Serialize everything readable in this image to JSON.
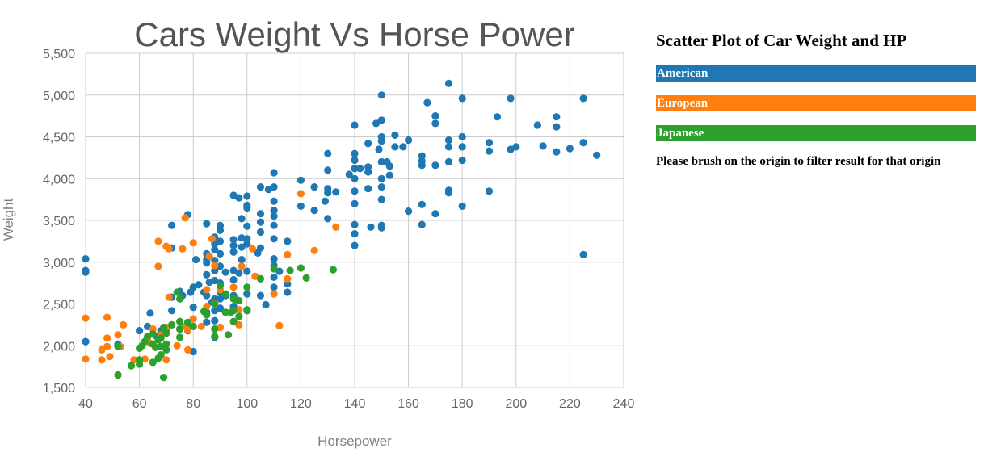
{
  "panel": {
    "title": "Scatter Plot of Car Weight and HP",
    "legend": [
      {
        "label": "American",
        "color": "#1f77b4"
      },
      {
        "label": "European",
        "color": "#ff7f0e"
      },
      {
        "label": "Japanese",
        "color": "#2ca02c"
      }
    ],
    "note": "Please brush on the origin to filter result for that origin"
  },
  "chart_data": {
    "type": "scatter",
    "title": "Cars Weight Vs Horse Power",
    "xlabel": "Horsepower",
    "ylabel": "Weight",
    "xlim": [
      40,
      240
    ],
    "ylim": [
      1500,
      5500
    ],
    "xticks": [
      40,
      60,
      80,
      100,
      120,
      140,
      160,
      180,
      200,
      220,
      240
    ],
    "yticks": [
      1500,
      2000,
      2500,
      3000,
      3500,
      4000,
      4500,
      5000,
      5500
    ],
    "ytick_labels": [
      "1,500",
      "2,000",
      "2,500",
      "3,000",
      "3,500",
      "4,000",
      "4,500",
      "5,000",
      "5,500"
    ],
    "grid": true,
    "series": [
      {
        "name": "American",
        "color": "#1f77b4",
        "points": [
          [
            40,
            3040
          ],
          [
            40,
            2900
          ],
          [
            40,
            2880
          ],
          [
            40,
            2050
          ],
          [
            52,
            2020
          ],
          [
            60,
            2180
          ],
          [
            63,
            2230
          ],
          [
            64,
            2390
          ],
          [
            66,
            2120
          ],
          [
            68,
            2180
          ],
          [
            70,
            2200
          ],
          [
            72,
            2420
          ],
          [
            72,
            2580
          ],
          [
            72,
            3440
          ],
          [
            72,
            3170
          ],
          [
            75,
            2650
          ],
          [
            76,
            2600
          ],
          [
            78,
            3570
          ],
          [
            78,
            2250
          ],
          [
            78,
            2180
          ],
          [
            79,
            2640
          ],
          [
            80,
            1930
          ],
          [
            80,
            2460
          ],
          [
            80,
            2700
          ],
          [
            81,
            3030
          ],
          [
            82,
            2730
          ],
          [
            84,
            2640
          ],
          [
            85,
            3460
          ],
          [
            85,
            3100
          ],
          [
            85,
            3030
          ],
          [
            85,
            2990
          ],
          [
            85,
            2850
          ],
          [
            85,
            2600
          ],
          [
            85,
            2400
          ],
          [
            85,
            2280
          ],
          [
            86,
            2760
          ],
          [
            87,
            2520
          ],
          [
            88,
            3300
          ],
          [
            88,
            3220
          ],
          [
            88,
            3150
          ],
          [
            88,
            3020
          ],
          [
            88,
            2900
          ],
          [
            88,
            2780
          ],
          [
            88,
            2560
          ],
          [
            88,
            2420
          ],
          [
            88,
            2300
          ],
          [
            88,
            2100
          ],
          [
            90,
            3440
          ],
          [
            90,
            3380
          ],
          [
            90,
            3250
          ],
          [
            90,
            3100
          ],
          [
            90,
            2950
          ],
          [
            90,
            2750
          ],
          [
            90,
            2640
          ],
          [
            90,
            2560
          ],
          [
            90,
            2450
          ],
          [
            90,
            2220
          ],
          [
            92,
            2880
          ],
          [
            92,
            2600
          ],
          [
            95,
            3800
          ],
          [
            95,
            3270
          ],
          [
            95,
            3200
          ],
          [
            95,
            3120
          ],
          [
            95,
            2900
          ],
          [
            95,
            2790
          ],
          [
            95,
            2600
          ],
          [
            95,
            2470
          ],
          [
            97,
            3770
          ],
          [
            97,
            2870
          ],
          [
            98,
            3520
          ],
          [
            98,
            3290
          ],
          [
            98,
            3180
          ],
          [
            98,
            3030
          ],
          [
            100,
            3790
          ],
          [
            100,
            3680
          ],
          [
            100,
            3650
          ],
          [
            100,
            3430
          ],
          [
            100,
            3280
          ],
          [
            100,
            3220
          ],
          [
            100,
            2890
          ],
          [
            100,
            2620
          ],
          [
            100,
            2420
          ],
          [
            104,
            3110
          ],
          [
            105,
            3900
          ],
          [
            105,
            3580
          ],
          [
            105,
            3480
          ],
          [
            105,
            3360
          ],
          [
            105,
            3170
          ],
          [
            105,
            2600
          ],
          [
            107,
            2490
          ],
          [
            108,
            3870
          ],
          [
            110,
            4070
          ],
          [
            110,
            3900
          ],
          [
            110,
            3730
          ],
          [
            110,
            3620
          ],
          [
            110,
            3550
          ],
          [
            110,
            3440
          ],
          [
            110,
            3280
          ],
          [
            110,
            3040
          ],
          [
            110,
            2960
          ],
          [
            110,
            2820
          ],
          [
            110,
            2700
          ],
          [
            112,
            2890
          ],
          [
            115,
            3250
          ],
          [
            115,
            2740
          ],
          [
            115,
            2640
          ],
          [
            120,
            3980
          ],
          [
            120,
            3670
          ],
          [
            125,
            3900
          ],
          [
            125,
            3620
          ],
          [
            129,
            3730
          ],
          [
            130,
            4300
          ],
          [
            130,
            4100
          ],
          [
            130,
            3880
          ],
          [
            130,
            3830
          ],
          [
            130,
            3520
          ],
          [
            133,
            3840
          ],
          [
            138,
            4050
          ],
          [
            140,
            4300
          ],
          [
            140,
            4220
          ],
          [
            140,
            4120
          ],
          [
            140,
            4000
          ],
          [
            140,
            3850
          ],
          [
            140,
            3700
          ],
          [
            140,
            3450
          ],
          [
            140,
            3340
          ],
          [
            140,
            3200
          ],
          [
            140,
            4640
          ],
          [
            142,
            4120
          ],
          [
            145,
            4420
          ],
          [
            145,
            4140
          ],
          [
            145,
            4080
          ],
          [
            145,
            3880
          ],
          [
            146,
            3420
          ],
          [
            148,
            4660
          ],
          [
            149,
            4350
          ],
          [
            150,
            5000
          ],
          [
            150,
            4700
          ],
          [
            150,
            4500
          ],
          [
            150,
            4450
          ],
          [
            150,
            4200
          ],
          [
            150,
            4000
          ],
          [
            150,
            3900
          ],
          [
            150,
            3750
          ],
          [
            150,
            3440
          ],
          [
            150,
            3410
          ],
          [
            152,
            4200
          ],
          [
            153,
            4150
          ],
          [
            153,
            4040
          ],
          [
            155,
            4520
          ],
          [
            155,
            4380
          ],
          [
            158,
            4380
          ],
          [
            160,
            4460
          ],
          [
            160,
            3610
          ],
          [
            165,
            4270
          ],
          [
            165,
            4210
          ],
          [
            165,
            4160
          ],
          [
            165,
            3690
          ],
          [
            165,
            3450
          ],
          [
            167,
            4910
          ],
          [
            170,
            4750
          ],
          [
            170,
            4660
          ],
          [
            170,
            4160
          ],
          [
            170,
            3580
          ],
          [
            175,
            5140
          ],
          [
            175,
            4460
          ],
          [
            175,
            4380
          ],
          [
            175,
            4200
          ],
          [
            175,
            3860
          ],
          [
            175,
            3830
          ],
          [
            180,
            4960
          ],
          [
            180,
            4500
          ],
          [
            180,
            4380
          ],
          [
            180,
            4220
          ],
          [
            180,
            3670
          ],
          [
            190,
            4430
          ],
          [
            190,
            4330
          ],
          [
            190,
            3850
          ],
          [
            193,
            4740
          ],
          [
            198,
            4960
          ],
          [
            198,
            4350
          ],
          [
            200,
            4380
          ],
          [
            208,
            4640
          ],
          [
            210,
            4390
          ],
          [
            215,
            4740
          ],
          [
            215,
            4620
          ],
          [
            215,
            4320
          ],
          [
            220,
            4360
          ],
          [
            225,
            4960
          ],
          [
            225,
            4430
          ],
          [
            225,
            3090
          ],
          [
            230,
            4280
          ]
        ]
      },
      {
        "name": "European",
        "color": "#ff7f0e",
        "points": [
          [
            40,
            2330
          ],
          [
            40,
            1840
          ],
          [
            46,
            1950
          ],
          [
            46,
            1830
          ],
          [
            48,
            2340
          ],
          [
            48,
            2090
          ],
          [
            48,
            1990
          ],
          [
            49,
            1870
          ],
          [
            52,
            2130
          ],
          [
            53,
            1990
          ],
          [
            54,
            2250
          ],
          [
            58,
            1830
          ],
          [
            60,
            1830
          ],
          [
            62,
            1840
          ],
          [
            63,
            2100
          ],
          [
            64,
            2030
          ],
          [
            65,
            2200
          ],
          [
            67,
            3250
          ],
          [
            67,
            2950
          ],
          [
            68,
            2130
          ],
          [
            70,
            3190
          ],
          [
            70,
            2220
          ],
          [
            70,
            1830
          ],
          [
            71,
            3160
          ],
          [
            71,
            2580
          ],
          [
            74,
            2000
          ],
          [
            75,
            2200
          ],
          [
            76,
            3160
          ],
          [
            76,
            2230
          ],
          [
            77,
            3530
          ],
          [
            78,
            2190
          ],
          [
            78,
            1950
          ],
          [
            80,
            3230
          ],
          [
            80,
            2320
          ],
          [
            83,
            2230
          ],
          [
            85,
            2670
          ],
          [
            85,
            2470
          ],
          [
            86,
            3070
          ],
          [
            87,
            3280
          ],
          [
            88,
            2960
          ],
          [
            88,
            2510
          ],
          [
            90,
            2670
          ],
          [
            90,
            2220
          ],
          [
            95,
            2700
          ],
          [
            97,
            2430
          ],
          [
            97,
            2250
          ],
          [
            98,
            2950
          ],
          [
            102,
            3160
          ],
          [
            103,
            2830
          ],
          [
            110,
            2620
          ],
          [
            112,
            2240
          ],
          [
            115,
            3090
          ],
          [
            115,
            2800
          ],
          [
            120,
            3820
          ],
          [
            125,
            3140
          ],
          [
            133,
            3420
          ]
        ]
      },
      {
        "name": "Japanese",
        "color": "#2ca02c",
        "points": [
          [
            52,
            1990
          ],
          [
            52,
            1650
          ],
          [
            57,
            1760
          ],
          [
            60,
            1970
          ],
          [
            60,
            1830
          ],
          [
            60,
            1780
          ],
          [
            61,
            2000
          ],
          [
            62,
            2050
          ],
          [
            63,
            2110
          ],
          [
            65,
            2140
          ],
          [
            65,
            2020
          ],
          [
            65,
            1800
          ],
          [
            66,
            1980
          ],
          [
            67,
            2070
          ],
          [
            67,
            1850
          ],
          [
            68,
            2090
          ],
          [
            68,
            1990
          ],
          [
            68,
            1890
          ],
          [
            69,
            2220
          ],
          [
            69,
            1620
          ],
          [
            70,
            2150
          ],
          [
            70,
            2020
          ],
          [
            70,
            1950
          ],
          [
            72,
            2250
          ],
          [
            74,
            2640
          ],
          [
            75,
            2560
          ],
          [
            75,
            2290
          ],
          [
            75,
            2200
          ],
          [
            75,
            2100
          ],
          [
            78,
            2280
          ],
          [
            80,
            2230
          ],
          [
            84,
            2410
          ],
          [
            85,
            2370
          ],
          [
            88,
            2500
          ],
          [
            88,
            2200
          ],
          [
            88,
            2110
          ],
          [
            90,
            2720
          ],
          [
            92,
            2620
          ],
          [
            92,
            2400
          ],
          [
            93,
            2130
          ],
          [
            94,
            2400
          ],
          [
            95,
            2560
          ],
          [
            95,
            2420
          ],
          [
            95,
            2290
          ],
          [
            96,
            2550
          ],
          [
            97,
            2540
          ],
          [
            97,
            2350
          ],
          [
            100,
            2700
          ],
          [
            100,
            2430
          ],
          [
            105,
            2800
          ],
          [
            110,
            2920
          ],
          [
            116,
            2900
          ],
          [
            120,
            2930
          ],
          [
            122,
            2810
          ],
          [
            132,
            2910
          ]
        ]
      }
    ]
  }
}
